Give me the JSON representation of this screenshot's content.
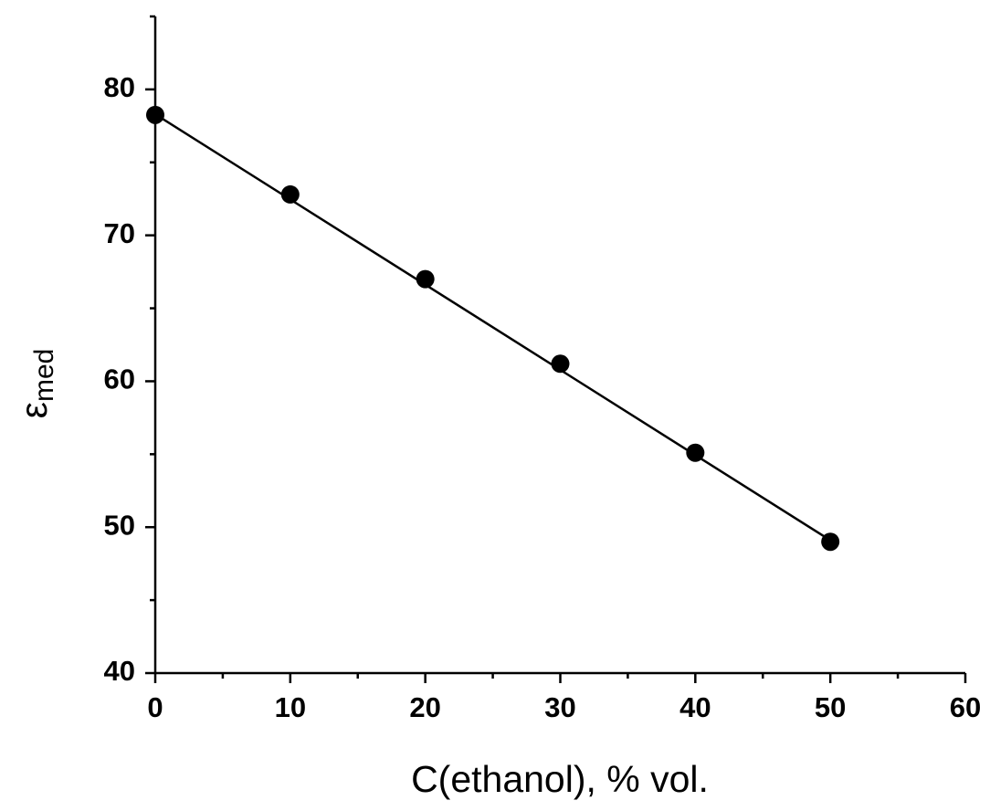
{
  "chart_data": {
    "type": "scatter",
    "xlabel": "C(ethanol), % vol.",
    "ylabel": "ε",
    "ylabel_sub": "med",
    "x": [
      0,
      10,
      20,
      30,
      40,
      50
    ],
    "values": [
      78.25,
      72.8,
      67.0,
      61.2,
      55.1,
      49.0
    ],
    "color": "#000000",
    "fit": {
      "x": [
        0,
        50
      ],
      "values": [
        78.3,
        49.1
      ]
    },
    "xlim": [
      0,
      60
    ],
    "xticks": [
      0,
      10,
      20,
      30,
      40,
      50,
      60
    ],
    "xminorticks": [
      5,
      15,
      25,
      35,
      45,
      55
    ],
    "ylim": [
      40,
      85
    ],
    "yticks": [
      40,
      50,
      60,
      70,
      80
    ],
    "yminorticks": [
      45,
      55,
      65,
      75,
      85
    ],
    "grid": false
  }
}
